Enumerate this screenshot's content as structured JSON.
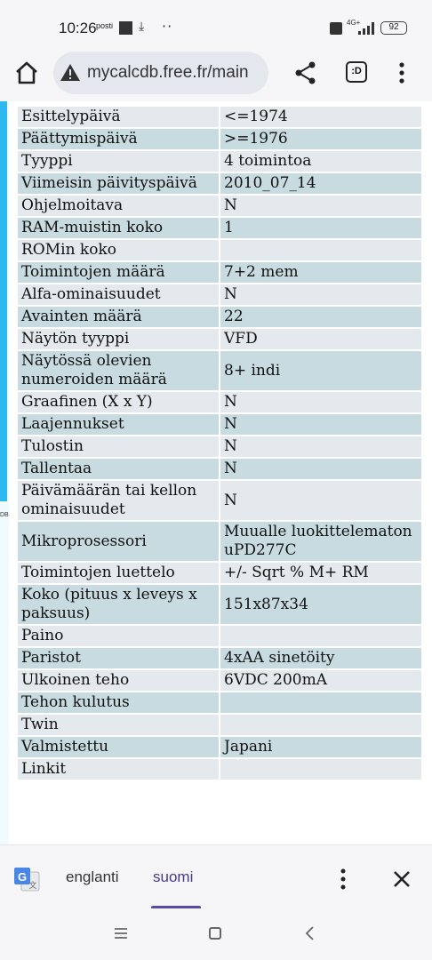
{
  "status_bar": {
    "time": "10:26",
    "notification_app": "posti",
    "network": "4G+",
    "battery": "92"
  },
  "browser": {
    "url": "mycalcdb.free.fr/main",
    "tab_label": ":D"
  },
  "left_label": "DB",
  "table": {
    "rows": [
      {
        "key": "Esittelypäivä",
        "value": "<=1974"
      },
      {
        "key": "Päättymispäivä",
        "value": ">=1976"
      },
      {
        "key": "Tyyppi",
        "value": "4 toimintoa"
      },
      {
        "key": "Viimeisin päivityspäivä",
        "value": "2010_07_14"
      },
      {
        "key": "Ohjelmoitava",
        "value": "N"
      },
      {
        "key": "RAM-muistin koko",
        "value": "1"
      },
      {
        "key": "ROMin koko",
        "value": ""
      },
      {
        "key": "Toimintojen määrä",
        "value": "7+2 mem"
      },
      {
        "key": "Alfa-ominaisuudet",
        "value": "N"
      },
      {
        "key": "Avainten määrä",
        "value": "22"
      },
      {
        "key": "Näytön tyyppi",
        "value": "VFD"
      },
      {
        "key": "Näytössä olevien numeroiden määrä",
        "value": "8+ indi"
      },
      {
        "key": "Graafinen (X x Y)",
        "value": "N"
      },
      {
        "key": "Laajennukset",
        "value": "N"
      },
      {
        "key": "Tulostin",
        "value": "N"
      },
      {
        "key": "Tallentaa",
        "value": "N"
      },
      {
        "key": "Päivämäärän tai kellon ominaisuudet",
        "value": "N"
      },
      {
        "key": "Mikroprosessori",
        "value": "Muualle luokittelematon uPD277C"
      },
      {
        "key": "Toimintojen luettelo",
        "value": "+/- Sqrt % M+ RM"
      },
      {
        "key": "Koko (pituus x leveys x paksuus)",
        "value": "151x87x34"
      },
      {
        "key": "Paino",
        "value": ""
      },
      {
        "key": "Paristot",
        "value": "4xAA sinetöity"
      },
      {
        "key": "Ulkoinen teho",
        "value": "6VDC 200mA"
      },
      {
        "key": "Tehon kulutus",
        "value": ""
      },
      {
        "key": "Twin",
        "value": ""
      },
      {
        "key": "Valmistettu",
        "value": "Japani"
      },
      {
        "key": "Linkit",
        "value": ""
      }
    ]
  },
  "translate_bar": {
    "source_language": "englanti",
    "target_language": "suomi",
    "selected": "suomi"
  },
  "colors": {
    "row_light": "#e3e9ec",
    "row_dark": "#c8dbe0",
    "accent": "#5b4aa0",
    "left_strip": "#2fb8f0"
  },
  "icons": {
    "home": "home-icon",
    "warning": "warning-icon",
    "share": "share-icon",
    "tabs": "tab-switcher-icon",
    "menu": "more-vert-icon",
    "translate": "google-translate-icon",
    "close": "close-icon"
  }
}
